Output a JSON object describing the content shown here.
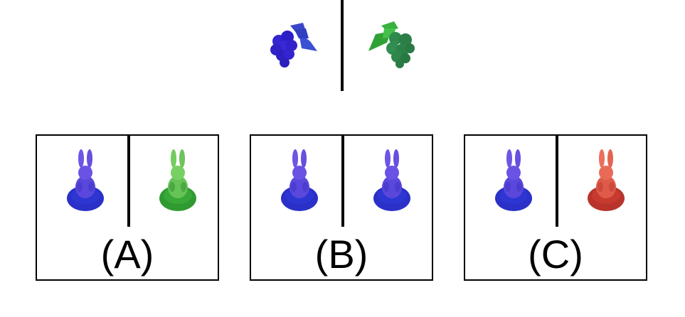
{
  "colors": {
    "blue": "#2a2fd0",
    "blue_light": "#5b4de6",
    "green": "#2f9a3a",
    "green_dark": "#2d7d48",
    "red": "#c93a30",
    "red_light": "#e5604f",
    "purple": "#6a52dc"
  },
  "example": {
    "left_icon": "grapes-blue-icon",
    "right_icon": "grapes-green-icon"
  },
  "options": [
    {
      "label": "(A)",
      "left_icon": "bunny-blue-icon",
      "right_icon": "bunny-green-icon"
    },
    {
      "label": "(B)",
      "left_icon": "bunny-blue-icon",
      "right_icon": "bunny-blue-icon"
    },
    {
      "label": "(C)",
      "left_icon": "bunny-blue-icon",
      "right_icon": "bunny-red-icon"
    }
  ]
}
